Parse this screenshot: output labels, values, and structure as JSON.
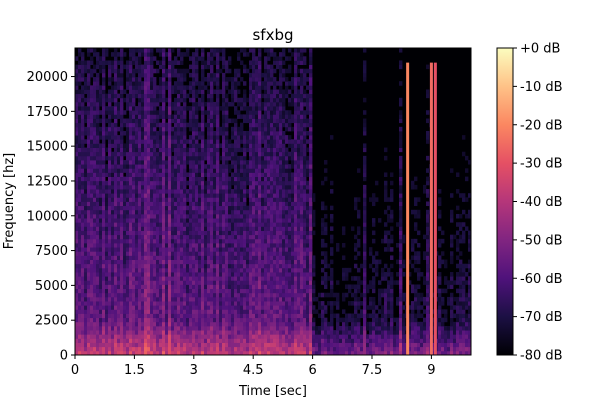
{
  "chart_data": {
    "type": "heatmap",
    "title": "sfxbg",
    "xlabel": "Time [sec]",
    "ylabel": "Frequency [hz]",
    "xlim": [
      0,
      10
    ],
    "ylim": [
      0,
      22050
    ],
    "x_ticks": [
      {
        "value": 0,
        "label": "0"
      },
      {
        "value": 1.5,
        "label": "1.5"
      },
      {
        "value": 3,
        "label": "3"
      },
      {
        "value": 4.5,
        "label": "4.5"
      },
      {
        "value": 6,
        "label": "6"
      },
      {
        "value": 7.5,
        "label": "7.5"
      },
      {
        "value": 9,
        "label": "9"
      }
    ],
    "y_ticks": [
      {
        "value": 0,
        "label": "0"
      },
      {
        "value": 2500,
        "label": "2500"
      },
      {
        "value": 5000,
        "label": "5000"
      },
      {
        "value": 7500,
        "label": "7500"
      },
      {
        "value": 10000,
        "label": "10000"
      },
      {
        "value": 12500,
        "label": "12500"
      },
      {
        "value": 15000,
        "label": "15000"
      },
      {
        "value": 17500,
        "label": "17500"
      },
      {
        "value": 20000,
        "label": "20000"
      }
    ],
    "colorbar": {
      "colormap": "magma",
      "range_db": [
        -80,
        0
      ],
      "ticks": [
        {
          "value": 0,
          "label": "+0 dB"
        },
        {
          "value": -10,
          "label": "-10 dB"
        },
        {
          "value": -20,
          "label": "-20 dB"
        },
        {
          "value": -30,
          "label": "-30 dB"
        },
        {
          "value": -40,
          "label": "-40 dB"
        },
        {
          "value": -50,
          "label": "-50 dB"
        },
        {
          "value": -60,
          "label": "-60 dB"
        },
        {
          "value": -70,
          "label": "-70 dB"
        },
        {
          "value": -80,
          "label": "-80 dB"
        }
      ]
    },
    "regions": [
      {
        "t_start": 0,
        "t_end": 6,
        "description": "broadband noise, energy concentrated below 2500 hz",
        "level_db": -55
      },
      {
        "t_start": 6,
        "t_end": 10,
        "description": "quieter section",
        "level_db": -70
      }
    ],
    "tonal_bursts": [
      {
        "time": 8.4,
        "f_max": 21000,
        "level_db": -20
      },
      {
        "time": 9.0,
        "f_max": 21000,
        "level_db": -25
      },
      {
        "time": 9.1,
        "f_max": 21000,
        "level_db": -30
      }
    ],
    "colors": {
      "magma_stops": [
        "#000004",
        "#1c1044",
        "#4f127b",
        "#812581",
        "#b5367a",
        "#e55064",
        "#fb8761",
        "#fec287",
        "#fcfdbf"
      ]
    }
  }
}
